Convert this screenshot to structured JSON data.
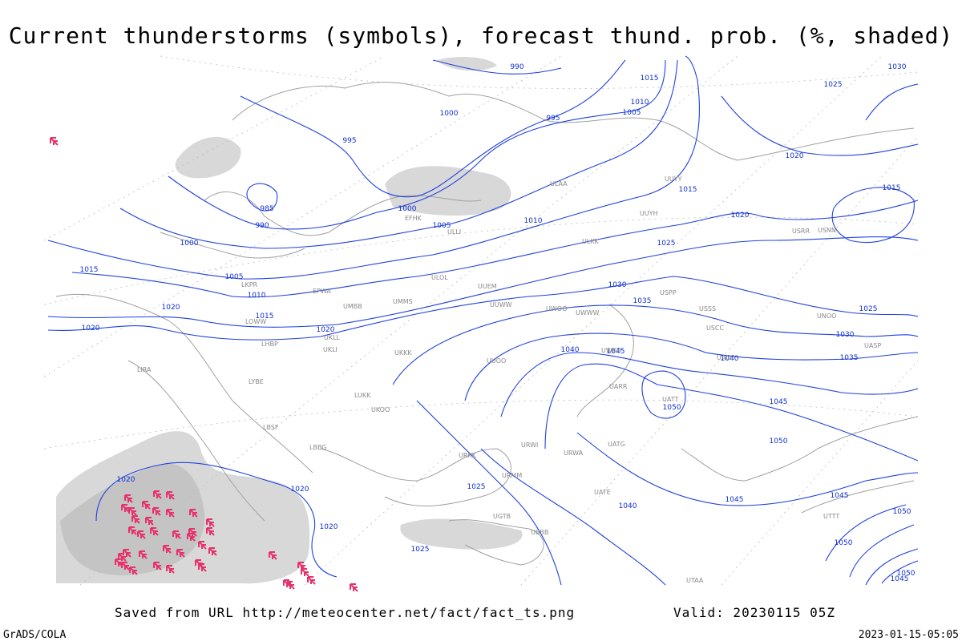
{
  "title": "Current thunderstorms (symbols), forecast thund. prob. (%, shaded)",
  "footer": {
    "source": "Saved from URL http://meteocenter.net/fact/fact_ts.png",
    "valid": "Valid: 20230115 05Z"
  },
  "credit": "GrADS/COLA",
  "timestamp": "2023-01-15-05:05",
  "isobar_labels": [
    "990",
    "995",
    "995",
    "1000",
    "985",
    "990",
    "1000",
    "1005",
    "1010",
    "1015",
    "1015",
    "1020",
    "1020",
    "1020",
    "1000",
    "1005",
    "1010",
    "1015",
    "1015",
    "1010",
    "1005",
    "1020",
    "1020",
    "1025",
    "1030",
    "1035",
    "1040",
    "1045",
    "1040",
    "1050",
    "1045",
    "1050",
    "1030",
    "1035",
    "1025",
    "1015",
    "1030",
    "1025",
    "1020",
    "1020",
    "1020",
    "1025",
    "1025",
    "1040",
    "1045",
    "1045",
    "1050",
    "1050",
    "1050",
    "1045"
  ],
  "station_labels": [
    "EFHK",
    "ULOL",
    "UUEM",
    "UUWW",
    "UMMS",
    "UKKK",
    "UKLL",
    "UKLI",
    "UMBB",
    "EPWA",
    "LKPR",
    "LOWW",
    "LHBP",
    "LIRA",
    "LYBE",
    "LBSF",
    "LBBG",
    "LUKK",
    "UKOO",
    "URKK",
    "URMM",
    "UGTB",
    "UBBB",
    "UTAA",
    "UTTT",
    "USCC",
    "USSS",
    "USPP",
    "UWWW",
    "UWOO",
    "UUOO",
    "UWKD",
    "UARR",
    "UATT",
    "UATG",
    "UATE",
    "URWA",
    "URWI",
    "ULAA",
    "ULLI",
    "UUYY",
    "UUYH",
    "ULKK",
    "USRR",
    "USNN",
    "UNOO",
    "UACC",
    "UASP"
  ]
}
